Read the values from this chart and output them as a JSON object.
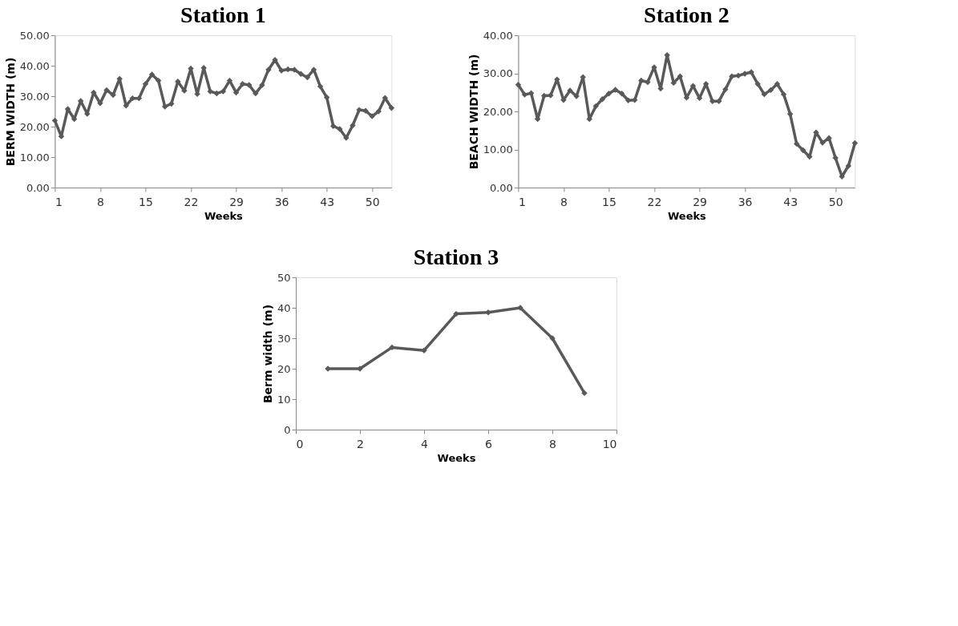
{
  "chart_data": [
    {
      "type": "line",
      "title": "Station 1",
      "xlabel": "Weeks",
      "ylabel": "BERM   WIDTH (m)",
      "color": "#595959",
      "marker": "diamond",
      "line_style": "solid",
      "grid": false,
      "x": [
        1,
        2,
        3,
        4,
        5,
        6,
        7,
        8,
        9,
        10,
        11,
        12,
        13,
        14,
        15,
        16,
        17,
        18,
        19,
        20,
        21,
        22,
        23,
        24,
        25,
        26,
        27,
        28,
        29,
        30,
        31,
        32,
        33,
        34,
        35,
        36,
        37,
        38,
        39,
        40,
        41,
        42,
        43,
        44,
        45,
        46,
        47,
        48,
        49,
        50,
        51,
        52,
        53
      ],
      "values": [
        22.0,
        16.8,
        25.8,
        22.5,
        28.4,
        24.2,
        31.2,
        27.7,
        32.0,
        30.4,
        35.7,
        26.9,
        29.3,
        29.3,
        34.0,
        37.1,
        35.1,
        26.6,
        27.5,
        34.8,
        31.8,
        39.1,
        30.7,
        39.3,
        31.6,
        30.9,
        31.6,
        35.1,
        31.2,
        34.0,
        33.7,
        30.9,
        33.6,
        38.7,
        41.9,
        38.4,
        38.8,
        38.7,
        37.3,
        36.2,
        38.7,
        33.2,
        29.6,
        20.2,
        19.2,
        16.3,
        20.4,
        25.5,
        25.2,
        23.4,
        25.0,
        29.4,
        26.1
      ],
      "xlim": [
        1,
        53
      ],
      "xticks": [
        1,
        8,
        15,
        22,
        29,
        36,
        43,
        50
      ],
      "ylim": [
        0,
        50
      ],
      "yticks": [
        {
          "value": 0,
          "label": "0.00"
        },
        {
          "value": 10,
          "label": "10.00"
        },
        {
          "value": 20,
          "label": "20.00"
        },
        {
          "value": 30,
          "label": "30.00"
        },
        {
          "value": 40,
          "label": "40.00"
        },
        {
          "value": 50,
          "label": "50.00"
        }
      ]
    },
    {
      "type": "line",
      "title": "Station 2",
      "xlabel": "Weeks",
      "ylabel": "BEACH WIDTH (m)",
      "color": "#595959",
      "marker": "diamond",
      "line_style": "solid",
      "grid": false,
      "x": [
        1,
        2,
        3,
        4,
        5,
        6,
        7,
        8,
        9,
        10,
        11,
        12,
        13,
        14,
        15,
        16,
        17,
        18,
        19,
        20,
        21,
        22,
        23,
        24,
        25,
        26,
        27,
        28,
        29,
        30,
        31,
        32,
        33,
        34,
        35,
        36,
        37,
        38,
        39,
        40,
        41,
        42,
        43,
        44,
        45,
        46,
        47,
        48,
        49,
        50,
        51,
        52,
        53
      ],
      "values": [
        27.0,
        24.4,
        24.8,
        18.0,
        24.1,
        24.2,
        28.4,
        23.0,
        25.5,
        24.0,
        29.0,
        18.0,
        21.4,
        23.2,
        24.7,
        25.7,
        24.7,
        22.9,
        23.0,
        28.1,
        27.7,
        31.6,
        26.0,
        34.8,
        27.5,
        29.2,
        23.6,
        26.7,
        23.5,
        27.2,
        22.7,
        22.7,
        25.8,
        29.2,
        29.4,
        29.9,
        30.3,
        27.2,
        24.5,
        25.6,
        27.2,
        24.5,
        19.3,
        11.5,
        9.8,
        8.1,
        14.5,
        11.8,
        13.0,
        7.8,
        2.9,
        5.7,
        11.7
      ],
      "xlim": [
        1,
        53
      ],
      "xticks": [
        1,
        8,
        15,
        22,
        29,
        36,
        43,
        50
      ],
      "ylim": [
        0,
        40
      ],
      "yticks": [
        {
          "value": 0,
          "label": "0.00"
        },
        {
          "value": 10,
          "label": "10.00"
        },
        {
          "value": 20,
          "label": "20.00"
        },
        {
          "value": 30,
          "label": "30.00"
        },
        {
          "value": 40,
          "label": "40.00"
        }
      ]
    },
    {
      "type": "line",
      "title": "Station 3",
      "xlabel": "Weeks",
      "ylabel": "Berm width (m)",
      "color": "#595959",
      "marker": "diamond",
      "line_style": "solid",
      "grid": false,
      "x": [
        1,
        2,
        3,
        4,
        5,
        6,
        7,
        8,
        9
      ],
      "values": [
        20,
        20,
        27,
        26,
        38,
        38.5,
        40,
        30,
        12
      ],
      "xlim": [
        0,
        10
      ],
      "xticks": [
        0,
        2,
        4,
        6,
        8,
        10
      ],
      "ylim": [
        0,
        50
      ],
      "yticks": [
        0,
        10,
        20,
        30,
        40,
        50
      ]
    }
  ]
}
